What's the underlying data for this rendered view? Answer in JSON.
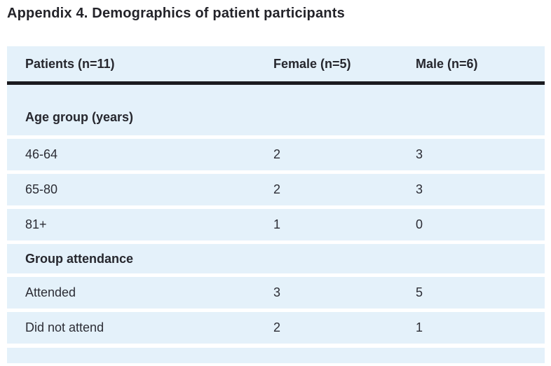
{
  "page": {
    "title": "Appendix 4. Demographics of patient participants"
  },
  "table": {
    "header": {
      "col1": "Patients (n=11)",
      "col2": "Female (n=5)",
      "col3": "Male (n=6)"
    },
    "sections": [
      {
        "label": "Age group (years)",
        "rows": [
          {
            "label": "46-64",
            "female": "2",
            "male": "3"
          },
          {
            "label": "65-80",
            "female": "2",
            "male": "3"
          },
          {
            "label": "81+",
            "female": "1",
            "male": "0"
          }
        ]
      },
      {
        "label": "Group attendance",
        "rows": [
          {
            "label": "Attended",
            "female": "3",
            "male": "5"
          },
          {
            "label": "Did not attend",
            "female": "2",
            "male": "1"
          }
        ]
      }
    ]
  },
  "colors": {
    "row_background": "#e4f1fa",
    "rule": "#1b1b1f",
    "text": "#2c2d35"
  }
}
